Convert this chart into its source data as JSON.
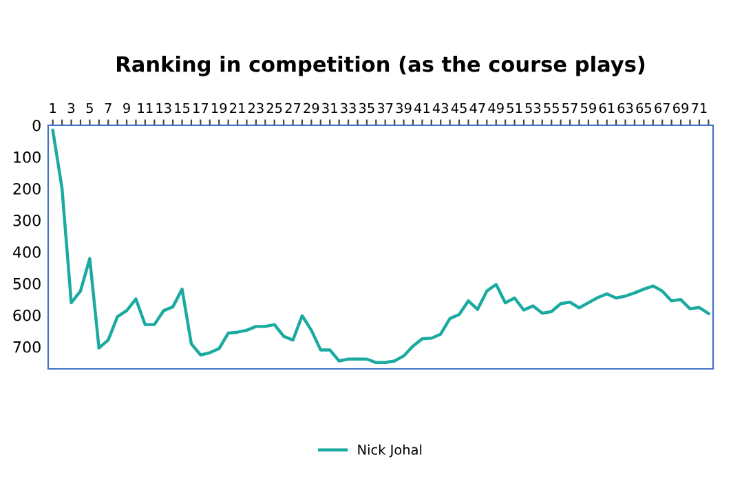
{
  "chart_data": {
    "type": "line",
    "title": "Ranking in competition (as the course plays)",
    "categories": [
      "1",
      null,
      "3",
      null,
      "5",
      null,
      "7",
      null,
      "9",
      null,
      "11",
      null,
      "13",
      null,
      "15",
      null,
      "17",
      null,
      "19",
      null,
      "21",
      null,
      "23",
      null,
      "25",
      null,
      "27",
      null,
      "29",
      null,
      "31",
      null,
      "33",
      null,
      "35",
      null,
      "37",
      null,
      "39",
      null,
      "41",
      null,
      "43",
      null,
      "45",
      null,
      "47",
      null,
      "49",
      null,
      "51",
      null,
      "53",
      null,
      "55",
      null,
      "57",
      null,
      "59",
      null,
      "61",
      null,
      "63",
      null,
      "65",
      null,
      "67",
      null,
      "69",
      null,
      "71",
      null
    ],
    "series": [
      {
        "name": "Nick Johal",
        "color": "#1aaaa0",
        "values": [
          16,
          200,
          561,
          524,
          421,
          704,
          679,
          605,
          586,
          549,
          630,
          630,
          586,
          574,
          518,
          691,
          726,
          719,
          706,
          657,
          654,
          648,
          636,
          636,
          630,
          667,
          679,
          602,
          648,
          710,
          710,
          745,
          739,
          739,
          739,
          750,
          750,
          745,
          729,
          698,
          675,
          673,
          660,
          611,
          598,
          555,
          582,
          524,
          503,
          561,
          546,
          584,
          571,
          594,
          589,
          564,
          559,
          577,
          561,
          545,
          533,
          546,
          540,
          530,
          518,
          508,
          524,
          555,
          551,
          580,
          576,
          595
        ]
      }
    ],
    "ylim": [
      770,
      0
    ],
    "yticks": [
      0,
      100,
      200,
      300,
      400,
      500,
      600,
      700
    ],
    "grid": false,
    "legend": "bottom",
    "marker": "none",
    "line_style": "solid"
  }
}
